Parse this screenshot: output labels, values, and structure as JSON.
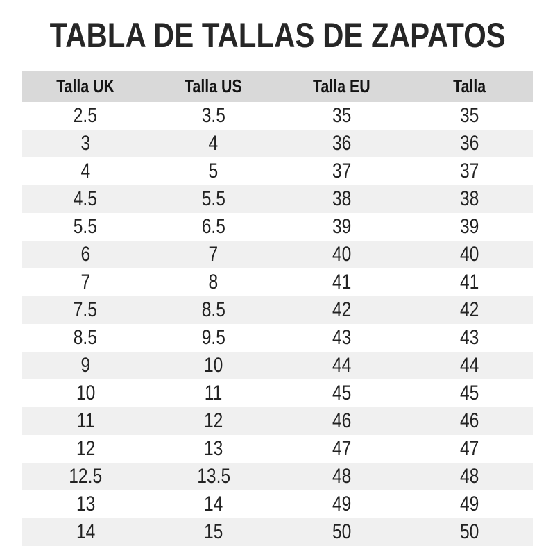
{
  "title": "TABLA DE TALLAS DE ZAPATOS",
  "colors": {
    "background": "#ffffff",
    "header_row_bg": "#d9d9d9",
    "stripe_row_bg": "#f0f0f0",
    "title_text": "#262626",
    "cell_text": "#222222"
  },
  "chart_data": {
    "type": "table",
    "title": "TABLA DE TALLAS DE ZAPATOS",
    "columns": [
      "Talla UK",
      "Talla US",
      "Talla EU",
      "Talla"
    ],
    "rows": [
      [
        "2.5",
        "3.5",
        "35",
        "35"
      ],
      [
        "3",
        "4",
        "36",
        "36"
      ],
      [
        "4",
        "5",
        "37",
        "37"
      ],
      [
        "4.5",
        "5.5",
        "38",
        "38"
      ],
      [
        "5.5",
        "6.5",
        "39",
        "39"
      ],
      [
        "6",
        "7",
        "40",
        "40"
      ],
      [
        "7",
        "8",
        "41",
        "41"
      ],
      [
        "7.5",
        "8.5",
        "42",
        "42"
      ],
      [
        "8.5",
        "9.5",
        "43",
        "43"
      ],
      [
        "9",
        "10",
        "44",
        "44"
      ],
      [
        "10",
        "11",
        "45",
        "45"
      ],
      [
        "11",
        "12",
        "46",
        "46"
      ],
      [
        "12",
        "13",
        "47",
        "47"
      ],
      [
        "12.5",
        "13.5",
        "48",
        "48"
      ],
      [
        "13",
        "14",
        "49",
        "49"
      ],
      [
        "14",
        "15",
        "50",
        "50"
      ]
    ],
    "layout": {
      "striped": true,
      "stripe_pattern": "even-rows-gray",
      "column_alignment": "center",
      "row_count": 16
    }
  }
}
